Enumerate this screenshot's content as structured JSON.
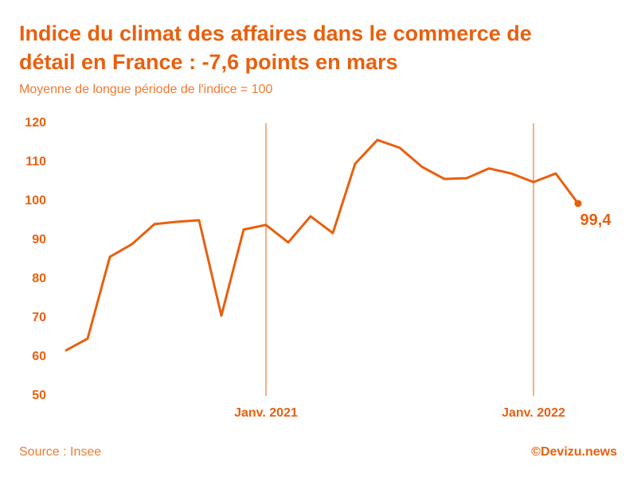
{
  "chart_data": {
    "type": "line",
    "title": [
      "Indice du climat des affaires dans le commerce de",
      "détail en France : -7,6 points en mars"
    ],
    "subtitle": "Moyenne de longue période de l'indice = 100",
    "source": "Source : Insee",
    "credit": "©Devizu.news",
    "x": [
      0,
      1,
      2,
      3,
      4,
      5,
      6,
      7,
      8,
      9,
      10,
      11,
      12,
      13,
      14,
      15,
      16,
      17,
      18,
      19,
      20,
      21,
      22,
      23
    ],
    "xlim": [
      -1,
      25
    ],
    "xticks": [
      {
        "value": 9,
        "label": "Janv. 2021"
      },
      {
        "value": 21,
        "label": "Janv. 2022"
      }
    ],
    "ylim": [
      50,
      120
    ],
    "yticks": [
      50,
      60,
      70,
      80,
      90,
      100,
      110,
      120
    ],
    "series": [
      {
        "name": "Indice",
        "color": "#e8600f",
        "values": [
          61.6,
          64.7,
          85.7,
          89,
          94.1,
          94.7,
          95.1,
          70.6,
          92.7,
          93.9,
          89.4,
          96.1,
          91.8,
          109.6,
          115.7,
          113.7,
          108.8,
          105.7,
          105.9,
          108.4,
          107.1,
          104.9,
          107.1,
          99.4
        ],
        "value_labels": [
          null,
          null,
          null,
          null,
          null,
          null,
          null,
          null,
          null,
          null,
          null,
          null,
          null,
          null,
          null,
          null,
          null,
          null,
          null,
          null,
          null,
          null,
          null,
          "99,4"
        ]
      }
    ]
  }
}
